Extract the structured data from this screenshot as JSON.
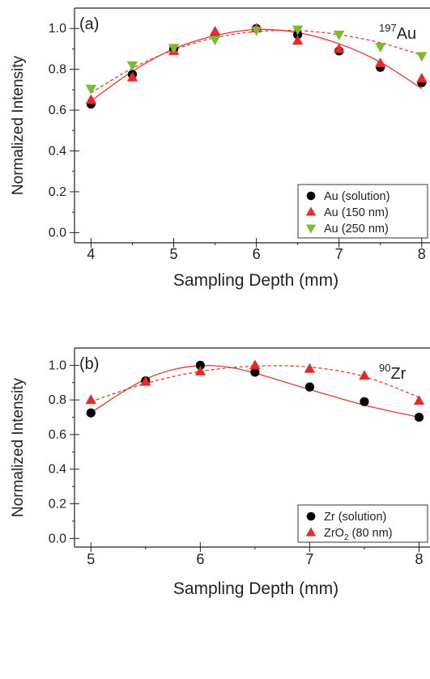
{
  "chart_data": [
    {
      "type": "scatter",
      "panel_label": "(a)",
      "element_label": {
        "sup": "197",
        "base": "Au"
      },
      "xlabel": "Sampling Depth (mm)",
      "ylabel": "Normalized Intensity",
      "xlim": [
        3.8,
        8.1
      ],
      "ylim": [
        -0.05,
        1.1
      ],
      "xticks": [
        4,
        5,
        6,
        7,
        8
      ],
      "yticks": [
        0.0,
        0.2,
        0.4,
        0.6,
        0.8,
        1.0
      ],
      "ytick_labels": [
        "0.0",
        "0.2",
        "0.4",
        "0.6",
        "0.8",
        "1.0"
      ],
      "legend_position": "bottom-right",
      "series": [
        {
          "name": "Au (solution)",
          "marker": "circle",
          "color": "#000000",
          "x": [
            4,
            4.5,
            5,
            5.5,
            6,
            6.5,
            7,
            7.5,
            8
          ],
          "y": [
            0.63,
            0.775,
            0.9,
            0.965,
            1.0,
            0.97,
            0.89,
            0.81,
            0.735
          ],
          "fit": {
            "style": "solid",
            "color": "#e8392f",
            "x": [
              4,
              4.5,
              5,
              5.5,
              6,
              6.5,
              7,
              7.5,
              8
            ],
            "y": [
              0.645,
              0.79,
              0.9,
              0.965,
              0.995,
              0.98,
              0.925,
              0.835,
              0.705
            ]
          }
        },
        {
          "name": "Au (150 nm)",
          "marker": "triangle-up",
          "color": "#e8292a",
          "x": [
            4,
            4.5,
            5,
            5.5,
            6,
            6.5,
            7,
            7.5,
            8
          ],
          "y": [
            0.65,
            0.76,
            0.89,
            0.985,
            1.0,
            0.94,
            0.9,
            0.83,
            0.755
          ]
        },
        {
          "name": "Au (250 nm)",
          "marker": "triangle-down",
          "color": "#78bb2e",
          "x": [
            4,
            4.5,
            5,
            5.5,
            6,
            6.5,
            7,
            7.5,
            8
          ],
          "y": [
            0.705,
            0.82,
            0.905,
            0.945,
            0.99,
            0.995,
            0.97,
            0.91,
            0.865
          ],
          "fit": {
            "style": "dashed",
            "color": "#e8392f",
            "x": [
              4,
              4.5,
              5,
              5.5,
              6,
              6.5,
              7,
              7.5,
              8
            ],
            "y": [
              0.685,
              0.805,
              0.895,
              0.955,
              0.985,
              0.99,
              0.97,
              0.93,
              0.87
            ]
          }
        }
      ]
    },
    {
      "type": "scatter",
      "panel_label": "(b)",
      "element_label": {
        "sup": "90",
        "base": "Zr"
      },
      "xlabel": "Sampling Depth (mm)",
      "ylabel": "Normalized Intensity",
      "xlim": [
        4.85,
        8.1
      ],
      "ylim": [
        -0.05,
        1.1
      ],
      "xticks": [
        5,
        6,
        7,
        8
      ],
      "yticks": [
        0.0,
        0.2,
        0.4,
        0.6,
        0.8,
        1.0
      ],
      "ytick_labels": [
        "0.0",
        "0.2",
        "0.4",
        "0.6",
        "0.8",
        "1.0"
      ],
      "legend_position": "bottom-right",
      "series": [
        {
          "name": "Zr (solution)",
          "marker": "circle",
          "color": "#000000",
          "x": [
            5,
            5.5,
            6,
            6.5,
            7,
            7.5,
            8
          ],
          "y": [
            0.725,
            0.91,
            1.0,
            0.96,
            0.875,
            0.79,
            0.7
          ],
          "fit": {
            "style": "solid",
            "color": "#e8392f",
            "x": [
              5,
              5.25,
              5.5,
              5.75,
              6,
              6.25,
              6.5,
              7,
              7.5,
              8
            ],
            "y": [
              0.725,
              0.83,
              0.92,
              0.975,
              0.998,
              0.99,
              0.955,
              0.86,
              0.77,
              0.7
            ]
          }
        },
        {
          "name": "ZrO",
          "name_sub": "2",
          "name_suffix": " (80 nm)",
          "marker": "triangle-up",
          "color": "#e8292a",
          "x": [
            5,
            5.5,
            6,
            6.5,
            7,
            7.5,
            8
          ],
          "y": [
            0.8,
            0.905,
            0.965,
            1.0,
            0.98,
            0.94,
            0.795
          ],
          "fit": {
            "style": "dashed",
            "color": "#e8392f",
            "x": [
              5,
              5.5,
              6,
              6.5,
              7,
              7.5,
              8
            ],
            "y": [
              0.79,
              0.895,
              0.965,
              0.995,
              0.99,
              0.935,
              0.815
            ]
          }
        }
      ]
    }
  ]
}
